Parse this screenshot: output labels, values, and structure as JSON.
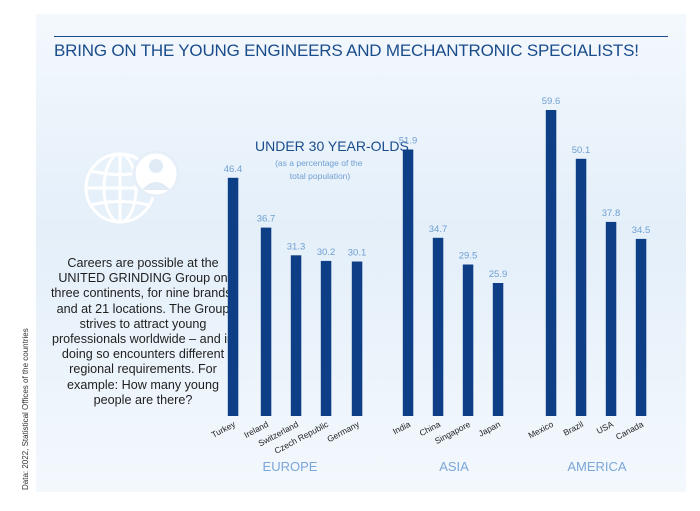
{
  "source_note": "Data: 2022, Statistical Offices of the countries",
  "title": "BRING ON THE YOUNG ENGINEERS AND MECHANTRONIC SPECIALISTS!",
  "description": "Careers are possible at the UNITED GRINDING Group on three continents, for nine brands, and at 21 locations. The Group strives to attract young professionals worldwide – and in doing so encounters different regional requirements. For example: How many young people are there?",
  "icons": [
    "globe-icon",
    "person-icon"
  ],
  "colors": {
    "bar": "#0e3f86",
    "value_label": "#6f9fd3",
    "group_label": "#7aa6d8",
    "title": "#1a4c8c"
  },
  "chart_data": {
    "type": "bar",
    "title": "UNDER 30 YEAR-OLDS",
    "subtitle": "(as a percentage of the total population)",
    "unit": "%",
    "categories": [
      "Turkey",
      "Ireland",
      "Switzerland",
      "Czech Republic",
      "Germany",
      "India",
      "China",
      "Singapore",
      "Japan",
      "Mexico",
      "Brazil",
      "USA",
      "Canada"
    ],
    "values": [
      46.4,
      36.7,
      31.3,
      30.2,
      30.1,
      51.9,
      34.7,
      29.5,
      25.9,
      59.6,
      50.1,
      37.8,
      34.5
    ],
    "value_labels": [
      "46.4",
      "36.7",
      "31.3",
      "30.2",
      "30.1",
      "51.9",
      "34.7",
      "29.5",
      "25.9",
      "59.6",
      "50.1",
      "37.8",
      "34.5"
    ],
    "groups": [
      {
        "name": "EUROPE",
        "categories": [
          "Turkey",
          "Ireland",
          "Switzerland",
          "Czech Republic",
          "Germany"
        ]
      },
      {
        "name": "ASIA",
        "categories": [
          "India",
          "China",
          "Singapore",
          "Japan"
        ]
      },
      {
        "name": "AMERICA",
        "categories": [
          "Mexico",
          "Brazil",
          "USA",
          "Canada"
        ]
      }
    ],
    "ylim": [
      0,
      60
    ],
    "grid": false,
    "axes_visible": false
  }
}
